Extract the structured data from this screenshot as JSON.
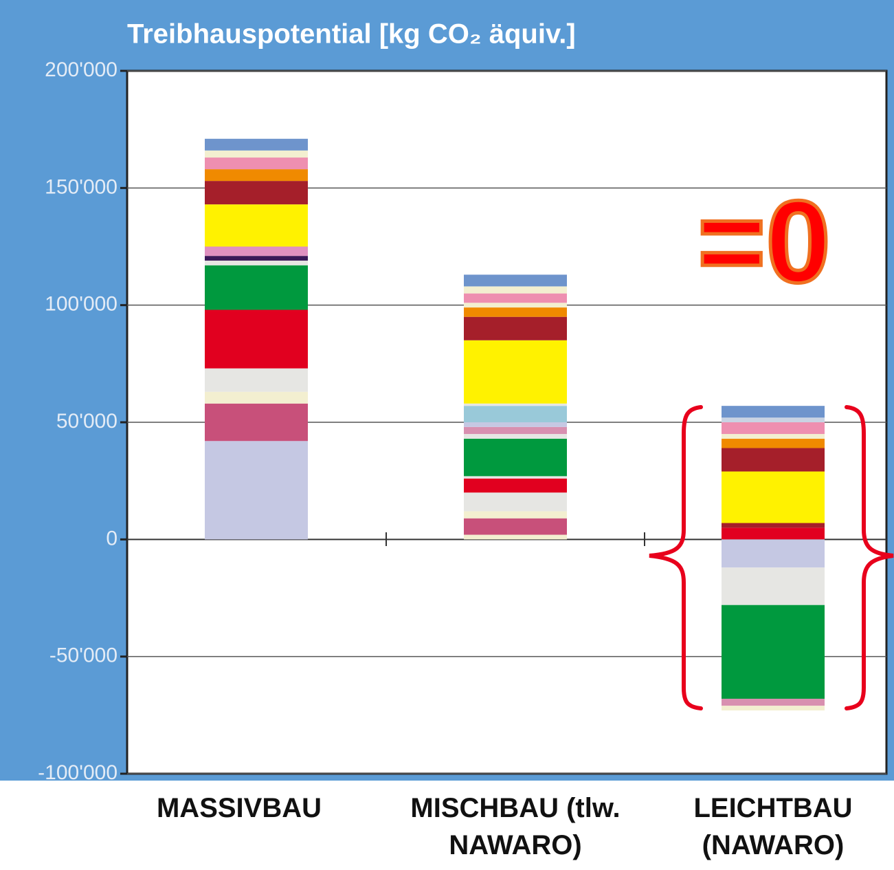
{
  "chart_data": {
    "type": "bar",
    "stacked": true,
    "title": "Treibhauspotential [kg CO₂ äquiv.]",
    "categories": [
      "MASSIVBAU",
      "MISCHBAU (tlw. NAWARO)",
      "LEICHTBAU (NAWARO)"
    ],
    "stacks": [
      [
        {
          "color": "#c5c8e3",
          "value": 42000
        },
        {
          "color": "#c8507a",
          "value": 16000
        },
        {
          "color": "#f3efd0",
          "value": 5000
        },
        {
          "color": "#e6e6e3",
          "value": 10000
        },
        {
          "color": "#e1001f",
          "value": 25000
        },
        {
          "color": "#00993e",
          "value": 19000
        },
        {
          "color": "#e6e6e3",
          "value": 2000
        },
        {
          "color": "#3a1858",
          "value": 2000
        },
        {
          "color": "#e090c0",
          "value": 4000
        },
        {
          "color": "#fff200",
          "value": 18000
        },
        {
          "color": "#a51f2a",
          "value": 10000
        },
        {
          "color": "#f08a00",
          "value": 5000
        },
        {
          "color": "#ee8fb0",
          "value": 5000
        },
        {
          "color": "#f3efd0",
          "value": 3000
        },
        {
          "color": "#6e94cc",
          "value": 5000
        }
      ],
      [
        {
          "color": "#f3efd0",
          "value": 2000
        },
        {
          "color": "#c8507a",
          "value": 7000
        },
        {
          "color": "#f3efd0",
          "value": 3000
        },
        {
          "color": "#e6e6e3",
          "value": 8000
        },
        {
          "color": "#e1001f",
          "value": 6000
        },
        {
          "color": "#e6e6e3",
          "value": 1000
        },
        {
          "color": "#00993e",
          "value": 16000
        },
        {
          "color": "#e6e6e3",
          "value": 2000
        },
        {
          "color": "#d890b0",
          "value": 3000
        },
        {
          "color": "#c5c8e3",
          "value": 2000
        },
        {
          "color": "#99c9d9",
          "value": 7000
        },
        {
          "color": "#e6e6e3",
          "value": 1000
        },
        {
          "color": "#fff200",
          "value": 27000
        },
        {
          "color": "#a51f2a",
          "value": 10000
        },
        {
          "color": "#f08a00",
          "value": 4000
        },
        {
          "color": "#f3efd0",
          "value": 2000
        },
        {
          "color": "#ee8fb0",
          "value": 4000
        },
        {
          "color": "#f3efd0",
          "value": 3000
        },
        {
          "color": "#6e94cc",
          "value": 5000
        }
      ],
      [
        {
          "color": "#e1001f",
          "value": 5000
        },
        {
          "color": "#a51f2a",
          "value": 2000
        },
        {
          "color": "#fff200",
          "value": 22000
        },
        {
          "color": "#a51f2a",
          "value": 10000
        },
        {
          "color": "#f08a00",
          "value": 4000
        },
        {
          "color": "#f3efd0",
          "value": 2000
        },
        {
          "color": "#ee8fb0",
          "value": 5000
        },
        {
          "color": "#c9d3e3",
          "value": 2000
        },
        {
          "color": "#6e94cc",
          "value": 5000
        },
        {
          "color": "#c5c8e3",
          "value": -12000
        },
        {
          "color": "#e6e6e3",
          "value": -16000
        },
        {
          "color": "#00993e",
          "value": -40000
        },
        {
          "color": "#d890b0",
          "value": -3000
        },
        {
          "color": "#f3efd0",
          "value": -2000
        }
      ]
    ],
    "ylim": [
      -100000,
      200000
    ],
    "yticks": [
      {
        "value": -100000,
        "label": "-100'000"
      },
      {
        "value": -50000,
        "label": "-50'000"
      },
      0,
      {
        "value": 50000,
        "label": "50'000"
      },
      {
        "value": 100000,
        "label": "100'000"
      },
      {
        "value": 150000,
        "label": "150'000"
      },
      {
        "value": 200000,
        "label": "200'000"
      }
    ],
    "grid": true,
    "annotation": "=0"
  }
}
